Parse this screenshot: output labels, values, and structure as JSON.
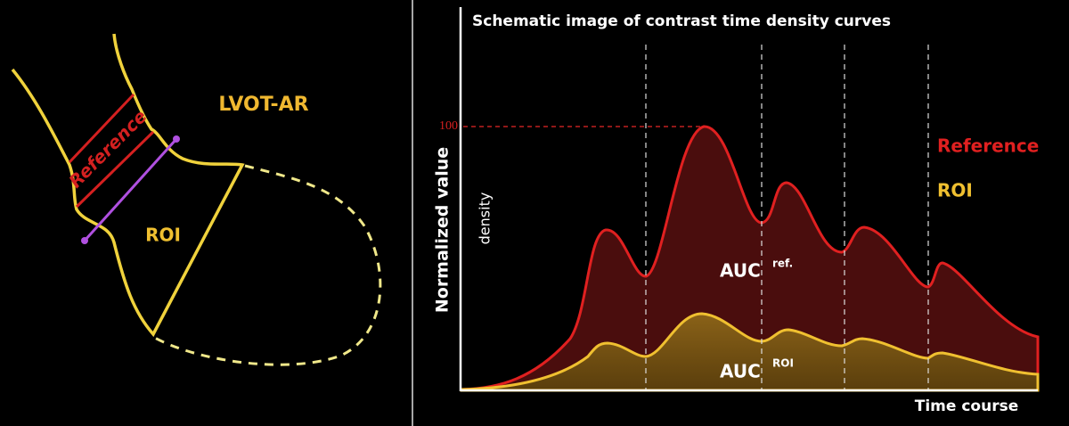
{
  "left_panel": {
    "label": "LVOT-AR",
    "reference_label": "Reference",
    "roi_label": "ROI"
  },
  "right_panel": {
    "title": "Schematic image of contrast time density curves",
    "y_axis_label": "Normalized value",
    "y_axis_sublabel": "density",
    "y_max_label": 100,
    "x_axis_label": "Time course",
    "legend": [
      "Reference",
      "ROI"
    ],
    "auc_ref": {
      "text": "AUC",
      "superscript": "ref."
    },
    "auc_roi": {
      "text": "AUC",
      "superscript": "ROI"
    }
  }
}
